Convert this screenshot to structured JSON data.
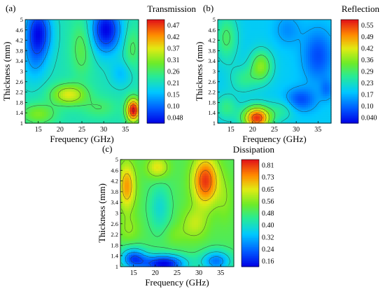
{
  "chart_data": [
    {
      "panel_label": "(a)",
      "type": "heatmap",
      "title": "Transmission",
      "xlabel": "Frequency (GHz)",
      "ylabel": "Thickness (mm)",
      "xlim": [
        12,
        38
      ],
      "ylim": [
        1,
        5
      ],
      "xticks": [
        "15",
        "20",
        "25",
        "30",
        "35"
      ],
      "yticks": [
        "1",
        "1.4",
        "1.8",
        "2.2",
        "2.6",
        "3",
        "3.4",
        "3.8",
        "4.2",
        "4.6",
        "5"
      ],
      "colorbar_ticks": [
        "0.47",
        "0.42",
        "0.37",
        "0.31",
        "0.26",
        "0.21",
        "0.15",
        "0.10",
        "0.048"
      ],
      "colorbar_range": [
        0.048,
        0.47
      ],
      "bg_value": 0.22,
      "features": [
        {
          "x": 15,
          "y": 4.5,
          "v": -0.16,
          "rx": 3.0,
          "ry": 1.0
        },
        {
          "x": 30.5,
          "y": 4.6,
          "v": -0.17,
          "rx": 3.5,
          "ry": 0.9
        },
        {
          "x": 14,
          "y": 3.3,
          "v": -0.05,
          "rx": 3.0,
          "ry": 0.9
        },
        {
          "x": 25,
          "y": 3.9,
          "v": 0.06,
          "rx": 2.5,
          "ry": 1.1
        },
        {
          "x": 36.5,
          "y": 3.9,
          "v": 0.05,
          "rx": 1.8,
          "ry": 0.8
        },
        {
          "x": 22,
          "y": 2.1,
          "v": 0.13,
          "rx": 4.0,
          "ry": 0.4
        },
        {
          "x": 36.8,
          "y": 1.5,
          "v": 0.26,
          "rx": 1.6,
          "ry": 0.45
        },
        {
          "x": 15,
          "y": 1.35,
          "v": 0.08,
          "rx": 4.0,
          "ry": 0.4
        },
        {
          "x": 29,
          "y": 1.6,
          "v": 0.04,
          "rx": 4.0,
          "ry": 0.4
        },
        {
          "x": 34,
          "y": 2.9,
          "v": -0.05,
          "rx": 2.5,
          "ry": 0.5
        }
      ]
    },
    {
      "panel_label": "(b)",
      "type": "heatmap",
      "title": "Reflection",
      "xlabel": "Frequency (GHz)",
      "ylabel": "Thickness (mm)",
      "xlim": [
        12,
        38
      ],
      "ylim": [
        1,
        5
      ],
      "xticks": [
        "15",
        "20",
        "25",
        "30",
        "35"
      ],
      "yticks": [
        "1",
        "1.4",
        "1.8",
        "2.2",
        "2.6",
        "3",
        "3.4",
        "3.8",
        "4.2",
        "4.6",
        "5"
      ],
      "colorbar_ticks": [
        "0.55",
        "0.49",
        "0.42",
        "0.36",
        "0.29",
        "0.23",
        "0.17",
        "0.10",
        "0.040"
      ],
      "colorbar_range": [
        0.04,
        0.55
      ],
      "bg_value": 0.2,
      "features": [
        {
          "x": 21,
          "y": 1.2,
          "v": 0.33,
          "rx": 3.2,
          "ry": 0.45
        },
        {
          "x": 14,
          "y": 1.6,
          "v": 0.08,
          "rx": 2.5,
          "ry": 0.5
        },
        {
          "x": 27,
          "y": 1.5,
          "v": 0.06,
          "rx": 3.0,
          "ry": 0.4
        },
        {
          "x": 22,
          "y": 3.2,
          "v": 0.15,
          "rx": 2.5,
          "ry": 0.6
        },
        {
          "x": 14,
          "y": 4.3,
          "v": 0.1,
          "rx": 2.5,
          "ry": 0.9
        },
        {
          "x": 18,
          "y": 2.7,
          "v": 0.07,
          "rx": 3.0,
          "ry": 0.5
        },
        {
          "x": 31,
          "y": 1.9,
          "v": -0.1,
          "rx": 3.5,
          "ry": 0.45
        },
        {
          "x": 35,
          "y": 3.6,
          "v": -0.1,
          "rx": 3.5,
          "ry": 1.0
        },
        {
          "x": 28,
          "y": 4.6,
          "v": -0.05,
          "rx": 3.0,
          "ry": 0.6
        },
        {
          "x": 37,
          "y": 2.3,
          "v": -0.06,
          "rx": 1.5,
          "ry": 0.4
        }
      ]
    },
    {
      "panel_label": "(c)",
      "type": "heatmap",
      "title": "Dissipation",
      "xlabel": "Frequency (GHz)",
      "ylabel": "Thickness (mm)",
      "xlim": [
        12,
        38
      ],
      "ylim": [
        1,
        5
      ],
      "xticks": [
        "15",
        "20",
        "25",
        "30",
        "35"
      ],
      "yticks": [
        "1",
        "1.4",
        "1.8",
        "2.2",
        "2.6",
        "3",
        "3.4",
        "3.8",
        "4.2",
        "4.6",
        "5"
      ],
      "colorbar_ticks": [
        "0.81",
        "0.73",
        "0.65",
        "0.56",
        "0.48",
        "0.40",
        "0.32",
        "0.24",
        "0.16"
      ],
      "colorbar_range": [
        0.16,
        0.81
      ],
      "bg_value": 0.5,
      "features": [
        {
          "x": 31.5,
          "y": 4.2,
          "v": 0.28,
          "rx": 3.0,
          "ry": 0.9
        },
        {
          "x": 13.5,
          "y": 4.0,
          "v": 0.2,
          "rx": 2.0,
          "ry": 0.9
        },
        {
          "x": 20.5,
          "y": 4.7,
          "v": 0.14,
          "rx": 2.5,
          "ry": 0.4
        },
        {
          "x": 29,
          "y": 2.6,
          "v": 0.1,
          "rx": 3.0,
          "ry": 0.6
        },
        {
          "x": 36,
          "y": 3.5,
          "v": 0.05,
          "rx": 2.0,
          "ry": 0.9
        },
        {
          "x": 21,
          "y": 3.2,
          "v": -0.1,
          "rx": 2.5,
          "ry": 0.9
        },
        {
          "x": 14,
          "y": 2.4,
          "v": 0.06,
          "rx": 2.5,
          "ry": 0.5
        },
        {
          "x": 22,
          "y": 1.1,
          "v": -0.34,
          "rx": 5.0,
          "ry": 0.35
        },
        {
          "x": 34,
          "y": 1.2,
          "v": -0.22,
          "rx": 3.5,
          "ry": 0.4
        },
        {
          "x": 15,
          "y": 1.3,
          "v": -0.25,
          "rx": 3.0,
          "ry": 0.4
        },
        {
          "x": 24.5,
          "y": 2.2,
          "v": 0.04,
          "rx": 2.5,
          "ry": 0.4
        }
      ]
    }
  ]
}
